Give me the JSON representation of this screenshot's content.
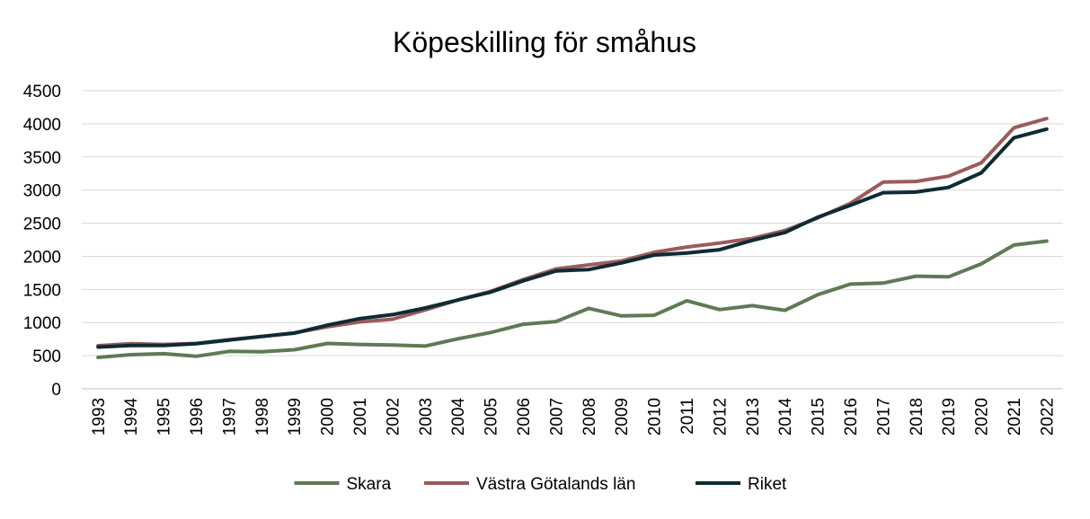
{
  "chart_data": {
    "type": "line",
    "title": "Köpeskilling för småhus",
    "xlabel": "",
    "ylabel": "",
    "ylim": [
      0,
      4500
    ],
    "yticks": [
      "0",
      "500",
      "1000",
      "1500",
      "2000",
      "2500",
      "3000",
      "3500",
      "4000",
      "4500"
    ],
    "grid": true,
    "legend_position": "bottom",
    "categories": [
      "1993",
      "1994",
      "1995",
      "1996",
      "1997",
      "1998",
      "1999",
      "2000",
      "2001",
      "2002",
      "2003",
      "2004",
      "2005",
      "2006",
      "2007",
      "2008",
      "2009",
      "2010",
      "2011",
      "2012",
      "2013",
      "2014",
      "2015",
      "2016",
      "2017",
      "2018",
      "2019",
      "2020",
      "2021",
      "2022"
    ],
    "series": [
      {
        "name": "Skara",
        "color": "#5e7a56",
        "values": [
          475,
          515,
          530,
          490,
          565,
          560,
          590,
          685,
          670,
          660,
          645,
          755,
          850,
          975,
          1015,
          1215,
          1100,
          1110,
          1330,
          1195,
          1255,
          1185,
          1420,
          1580,
          1595,
          1700,
          1690,
          1885,
          2170,
          2230
        ]
      },
      {
        "name": "Västra Götalands län",
        "color": "#9b5b5b",
        "values": [
          650,
          680,
          670,
          685,
          740,
          790,
          845,
          935,
          1010,
          1050,
          1190,
          1340,
          1470,
          1650,
          1810,
          1870,
          1930,
          2060,
          2140,
          2200,
          2270,
          2390,
          2580,
          2800,
          3120,
          3130,
          3210,
          3410,
          3940,
          4080
        ]
      },
      {
        "name": "Riket",
        "color": "#0d2b33",
        "values": [
          630,
          655,
          655,
          680,
          735,
          790,
          840,
          960,
          1060,
          1120,
          1220,
          1340,
          1460,
          1630,
          1780,
          1800,
          1900,
          2020,
          2050,
          2100,
          2240,
          2360,
          2590,
          2770,
          2960,
          2970,
          3040,
          3260,
          3790,
          3920
        ]
      }
    ]
  }
}
